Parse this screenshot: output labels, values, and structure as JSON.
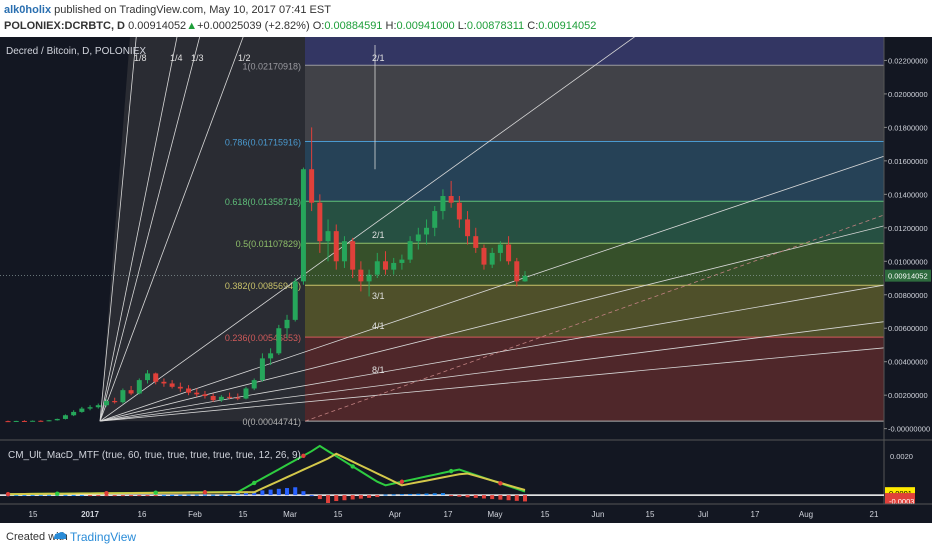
{
  "header": {
    "user": "alk0holix",
    "published": "published on TradingView.com, May 10, 2017 07:41 EST",
    "symbol": "POLONIEX:DCRBTC, D",
    "price": "0.00914052",
    "change_arrow": "▲",
    "change": "+0.00025039 (+2.82%)",
    "o_label": "O:",
    "o_value": "0.00884591",
    "h_label": "H:",
    "h_value": "0.00941000",
    "l_label": "L:",
    "l_value": "0.00878311",
    "c_label": "C:",
    "c_value": "0.00914052"
  },
  "footer": {
    "created": "Created with",
    "brand": "TradingView"
  },
  "colors": {
    "background": "#131722",
    "up": "#26a65b",
    "down": "#e0403a",
    "grid": "#2a2e39"
  },
  "chart_data": [
    {
      "type": "candlestick",
      "title": "Decred / Bitcoin, D, POLONIEX",
      "ylim": [
        -0.0002,
        0.0234
      ],
      "y_ticks": [
        "0.02200000",
        "0.02000000",
        "0.01800000",
        "0.01600000",
        "0.01400000",
        "0.01200000",
        "0.01000000",
        "0.00800000",
        "0.00600000",
        "0.00400000",
        "0.00200000",
        "-0.00000000"
      ],
      "y_tick_values": [
        0.022,
        0.02,
        0.018,
        0.016,
        0.014,
        0.012,
        0.01,
        0.008,
        0.006,
        0.004,
        0.002,
        0.0
      ],
      "x_ticks": [
        "15",
        "2017",
        "16",
        "Feb",
        "15",
        "Mar",
        "15",
        "Apr",
        "17",
        "May",
        "15",
        "Jun",
        "15",
        "Jul",
        "17",
        "Aug",
        "21"
      ],
      "last_price_label": "0.00914052",
      "fib_levels": [
        {
          "label": "0.5(0.01107829)",
          "value": 0.01107829
        },
        {
          "label": "0.618(0.01358718)",
          "value": 0.01358718
        },
        {
          "label": "0.786(0.01715916)",
          "value": 0.01715916
        },
        {
          "label": "1(0.02170918)",
          "value": 0.02170918
        },
        {
          "label": "0.382(0.00856940)",
          "value": 0.0085694
        },
        {
          "label": "0.236(0.00546853)",
          "value": 0.00546853
        },
        {
          "label": "0(0.00044741)",
          "value": 0.00044741
        }
      ],
      "gann_labels": [
        "1/8",
        "1/4",
        "1/3",
        "1/2",
        "2/1",
        "3/1",
        "4/1",
        "8/1",
        "2/1"
      ],
      "ohlc": [
        {
          "o": 0.00045,
          "h": 0.00048,
          "l": 0.00042,
          "c": 0.00044
        },
        {
          "o": 0.00044,
          "h": 0.00047,
          "l": 0.00041,
          "c": 0.00046
        },
        {
          "o": 0.00046,
          "h": 0.0005,
          "l": 0.00043,
          "c": 0.00045
        },
        {
          "o": 0.00045,
          "h": 0.00049,
          "l": 0.00043,
          "c": 0.00047
        },
        {
          "o": 0.00047,
          "h": 0.0005,
          "l": 0.00044,
          "c": 0.00046
        },
        {
          "o": 0.00046,
          "h": 0.00052,
          "l": 0.00044,
          "c": 0.0005
        },
        {
          "o": 0.0005,
          "h": 0.0006,
          "l": 0.00048,
          "c": 0.00058
        },
        {
          "o": 0.00058,
          "h": 0.00085,
          "l": 0.00055,
          "c": 0.0008
        },
        {
          "o": 0.0008,
          "h": 0.0011,
          "l": 0.00075,
          "c": 0.001
        },
        {
          "o": 0.001,
          "h": 0.0013,
          "l": 0.00095,
          "c": 0.0012
        },
        {
          "o": 0.0012,
          "h": 0.0014,
          "l": 0.0011,
          "c": 0.00128
        },
        {
          "o": 0.00128,
          "h": 0.0015,
          "l": 0.0012,
          "c": 0.0014
        },
        {
          "o": 0.0014,
          "h": 0.00175,
          "l": 0.00132,
          "c": 0.00165
        },
        {
          "o": 0.00165,
          "h": 0.00185,
          "l": 0.0015,
          "c": 0.00158
        },
        {
          "o": 0.00158,
          "h": 0.0024,
          "l": 0.0015,
          "c": 0.0023
        },
        {
          "o": 0.0023,
          "h": 0.00255,
          "l": 0.002,
          "c": 0.0021
        },
        {
          "o": 0.0021,
          "h": 0.003,
          "l": 0.00205,
          "c": 0.0029
        },
        {
          "o": 0.0029,
          "h": 0.0035,
          "l": 0.0027,
          "c": 0.0033
        },
        {
          "o": 0.0033,
          "h": 0.00335,
          "l": 0.00265,
          "c": 0.0028
        },
        {
          "o": 0.0028,
          "h": 0.003,
          "l": 0.0025,
          "c": 0.0027
        },
        {
          "o": 0.0027,
          "h": 0.0029,
          "l": 0.0024,
          "c": 0.0025
        },
        {
          "o": 0.0025,
          "h": 0.00275,
          "l": 0.0022,
          "c": 0.0024
        },
        {
          "o": 0.0024,
          "h": 0.0026,
          "l": 0.002,
          "c": 0.00215
        },
        {
          "o": 0.00215,
          "h": 0.0024,
          "l": 0.0019,
          "c": 0.00205
        },
        {
          "o": 0.00205,
          "h": 0.00225,
          "l": 0.0018,
          "c": 0.00195
        },
        {
          "o": 0.00195,
          "h": 0.0021,
          "l": 0.0016,
          "c": 0.0017
        },
        {
          "o": 0.0017,
          "h": 0.002,
          "l": 0.0016,
          "c": 0.0019
        },
        {
          "o": 0.0019,
          "h": 0.00215,
          "l": 0.00175,
          "c": 0.00185
        },
        {
          "o": 0.00185,
          "h": 0.0021,
          "l": 0.0017,
          "c": 0.0018
        },
        {
          "o": 0.0018,
          "h": 0.0025,
          "l": 0.00175,
          "c": 0.0024
        },
        {
          "o": 0.0024,
          "h": 0.003,
          "l": 0.0023,
          "c": 0.0029
        },
        {
          "o": 0.0029,
          "h": 0.0045,
          "l": 0.0028,
          "c": 0.0042
        },
        {
          "o": 0.0042,
          "h": 0.0048,
          "l": 0.0038,
          "c": 0.0045
        },
        {
          "o": 0.0045,
          "h": 0.0062,
          "l": 0.0044,
          "c": 0.006
        },
        {
          "o": 0.006,
          "h": 0.0068,
          "l": 0.0054,
          "c": 0.0065
        },
        {
          "o": 0.0065,
          "h": 0.009,
          "l": 0.0064,
          "c": 0.0088
        },
        {
          "o": 0.0088,
          "h": 0.0156,
          "l": 0.0086,
          "c": 0.0155
        },
        {
          "o": 0.0155,
          "h": 0.018,
          "l": 0.013,
          "c": 0.0135
        },
        {
          "o": 0.0135,
          "h": 0.014,
          "l": 0.0105,
          "c": 0.0112
        },
        {
          "o": 0.0112,
          "h": 0.0125,
          "l": 0.01,
          "c": 0.0118
        },
        {
          "o": 0.0118,
          "h": 0.0122,
          "l": 0.0095,
          "c": 0.01
        },
        {
          "o": 0.01,
          "h": 0.0115,
          "l": 0.0096,
          "c": 0.0112
        },
        {
          "o": 0.0112,
          "h": 0.0114,
          "l": 0.009,
          "c": 0.0095
        },
        {
          "o": 0.0095,
          "h": 0.01,
          "l": 0.0082,
          "c": 0.0088
        },
        {
          "o": 0.0088,
          "h": 0.0095,
          "l": 0.0079,
          "c": 0.0092
        },
        {
          "o": 0.0092,
          "h": 0.0105,
          "l": 0.009,
          "c": 0.01
        },
        {
          "o": 0.01,
          "h": 0.0106,
          "l": 0.0092,
          "c": 0.0095
        },
        {
          "o": 0.0095,
          "h": 0.0102,
          "l": 0.0092,
          "c": 0.0099
        },
        {
          "o": 0.0099,
          "h": 0.0104,
          "l": 0.0095,
          "c": 0.0101
        },
        {
          "o": 0.0101,
          "h": 0.0115,
          "l": 0.0099,
          "c": 0.0112
        },
        {
          "o": 0.0112,
          "h": 0.012,
          "l": 0.0107,
          "c": 0.0116
        },
        {
          "o": 0.0116,
          "h": 0.0125,
          "l": 0.011,
          "c": 0.012
        },
        {
          "o": 0.012,
          "h": 0.0133,
          "l": 0.0115,
          "c": 0.013
        },
        {
          "o": 0.013,
          "h": 0.0143,
          "l": 0.0125,
          "c": 0.0139
        },
        {
          "o": 0.0139,
          "h": 0.0148,
          "l": 0.0132,
          "c": 0.0135
        },
        {
          "o": 0.0135,
          "h": 0.0139,
          "l": 0.012,
          "c": 0.0125
        },
        {
          "o": 0.0125,
          "h": 0.013,
          "l": 0.011,
          "c": 0.0115
        },
        {
          "o": 0.0115,
          "h": 0.012,
          "l": 0.0105,
          "c": 0.0108
        },
        {
          "o": 0.0108,
          "h": 0.011,
          "l": 0.0095,
          "c": 0.0098
        },
        {
          "o": 0.0098,
          "h": 0.0108,
          "l": 0.0096,
          "c": 0.0105
        },
        {
          "o": 0.0105,
          "h": 0.0112,
          "l": 0.01,
          "c": 0.011
        },
        {
          "o": 0.011,
          "h": 0.0115,
          "l": 0.0098,
          "c": 0.01
        },
        {
          "o": 0.01,
          "h": 0.0102,
          "l": 0.0085,
          "c": 0.0088
        },
        {
          "o": 0.0088,
          "h": 0.00941,
          "l": 0.00878,
          "c": 0.00914
        }
      ]
    },
    {
      "type": "histogram",
      "title": "CM_Ult_MacD_MTF (true, 60, true, true, true, true, true, 12, 26, 9)",
      "ylim": [
        -0.0004,
        0.0027
      ],
      "y_ticks": [
        "0.0020"
      ],
      "value_labels": [
        "0.0001",
        "-0.0002",
        "-0.0003"
      ]
    }
  ]
}
